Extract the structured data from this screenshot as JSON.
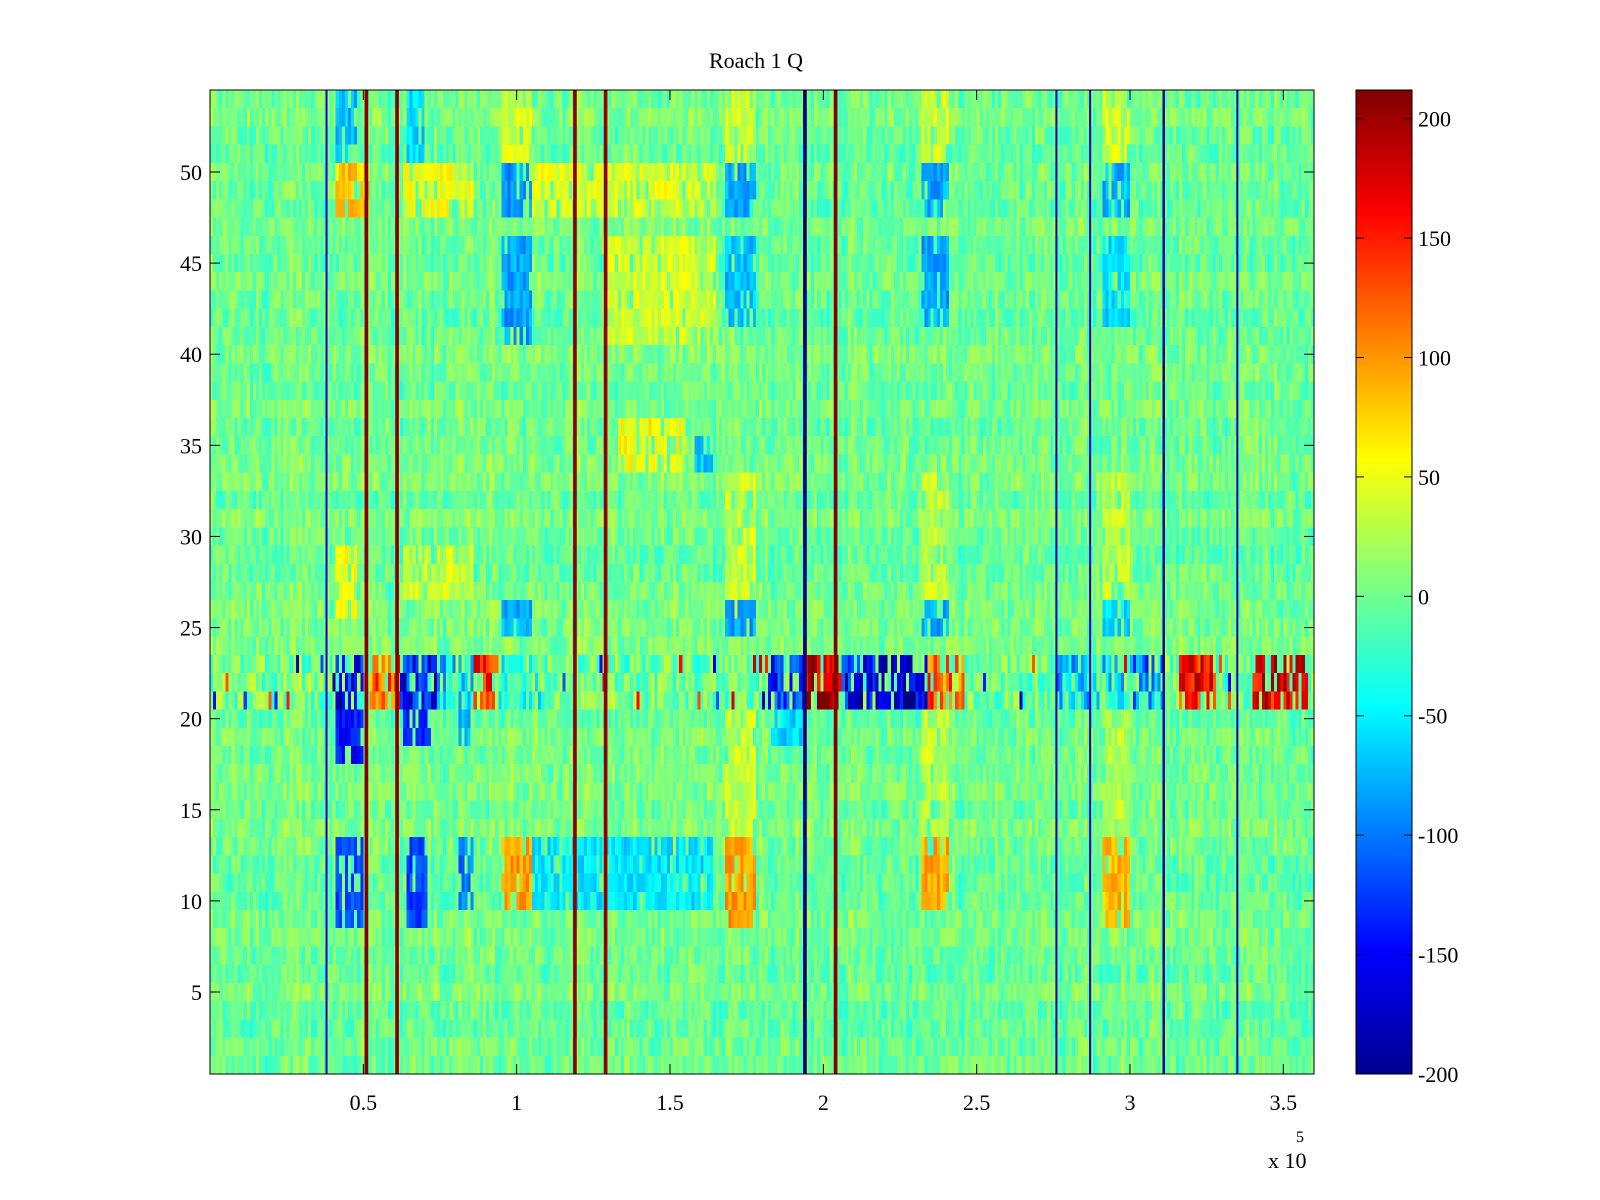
{
  "chart_data": {
    "type": "heatmap",
    "title": "Roach 1 Q",
    "xlabel": "",
    "ylabel": "",
    "x_multiplier_label": "x 10",
    "x_multiplier_exponent": "5",
    "xlim": [
      0,
      3.6
    ],
    "ylim": [
      0.5,
      54.5
    ],
    "x_ticks": [
      0.5,
      1,
      1.5,
      2,
      2.5,
      3,
      3.5
    ],
    "x_tick_labels": [
      "0.5",
      "1",
      "1.5",
      "2",
      "2.5",
      "3",
      "3.5"
    ],
    "y_ticks": [
      5,
      10,
      15,
      20,
      25,
      30,
      35,
      40,
      45,
      50
    ],
    "y_tick_labels": [
      "5",
      "10",
      "15",
      "20",
      "25",
      "30",
      "35",
      "40",
      "45",
      "50"
    ],
    "n_rows": 54,
    "background_level": 0,
    "colorbar": {
      "colormap": "jet",
      "clim": [
        -200,
        212
      ],
      "ticks": [
        -200,
        -150,
        -100,
        -50,
        0,
        50,
        100,
        150,
        200
      ],
      "tick_labels": [
        "-200",
        "-150",
        "-100",
        "-50",
        "0",
        "50",
        "100",
        "150",
        "200"
      ]
    },
    "vertical_stripes": [
      {
        "x": 0.38,
        "value": -170,
        "width": 0.006
      },
      {
        "x": 0.51,
        "value": 210,
        "width": 0.012
      },
      {
        "x": 0.61,
        "value": 210,
        "width": 0.012
      },
      {
        "x": 1.19,
        "value": 205,
        "width": 0.012
      },
      {
        "x": 1.29,
        "value": 205,
        "width": 0.012
      },
      {
        "x": 1.94,
        "value": -200,
        "width": 0.012
      },
      {
        "x": 2.04,
        "value": 210,
        "width": 0.012
      },
      {
        "x": 2.76,
        "value": -180,
        "width": 0.006
      },
      {
        "x": 2.87,
        "value": -180,
        "width": 0.006
      },
      {
        "x": 3.11,
        "value": -190,
        "width": 0.008
      },
      {
        "x": 3.35,
        "value": -180,
        "width": 0.006
      }
    ],
    "blobs": [
      {
        "x0": 0.41,
        "x1": 0.52,
        "y0": 48,
        "y1": 50,
        "value": 80
      },
      {
        "x0": 0.63,
        "x1": 0.86,
        "y0": 48,
        "y1": 50,
        "value": 50
      },
      {
        "x0": 0.41,
        "x1": 0.48,
        "y0": 51,
        "y1": 54,
        "value": -75
      },
      {
        "x0": 0.64,
        "x1": 0.7,
        "y0": 51,
        "y1": 54,
        "value": -60
      },
      {
        "x0": 0.95,
        "x1": 1.05,
        "y0": 51,
        "y1": 54,
        "value": 40
      },
      {
        "x0": 0.95,
        "x1": 1.05,
        "y0": 48,
        "y1": 50,
        "value": -90
      },
      {
        "x0": 1.05,
        "x1": 1.65,
        "y0": 48,
        "y1": 50,
        "value": 45
      },
      {
        "x0": 1.68,
        "x1": 1.78,
        "y0": 48,
        "y1": 50,
        "value": -80
      },
      {
        "x0": 1.68,
        "x1": 1.78,
        "y0": 51,
        "y1": 54,
        "value": 40
      },
      {
        "x0": 2.32,
        "x1": 2.41,
        "y0": 48,
        "y1": 50,
        "value": -80
      },
      {
        "x0": 2.32,
        "x1": 2.41,
        "y0": 51,
        "y1": 54,
        "value": 40
      },
      {
        "x0": 2.91,
        "x1": 3.0,
        "y0": 48,
        "y1": 50,
        "value": -75
      },
      {
        "x0": 2.91,
        "x1": 3.0,
        "y0": 51,
        "y1": 54,
        "value": 40
      },
      {
        "x0": 0.95,
        "x1": 1.05,
        "y0": 41,
        "y1": 46,
        "value": -85
      },
      {
        "x0": 1.28,
        "x1": 1.65,
        "y0": 41,
        "y1": 46,
        "value": 40
      },
      {
        "x0": 1.68,
        "x1": 1.78,
        "y0": 42,
        "y1": 46,
        "value": -70
      },
      {
        "x0": 2.32,
        "x1": 2.41,
        "y0": 42,
        "y1": 46,
        "value": -80
      },
      {
        "x0": 2.91,
        "x1": 3.0,
        "y0": 42,
        "y1": 46,
        "value": -60
      },
      {
        "x0": 1.33,
        "x1": 1.55,
        "y0": 34,
        "y1": 36,
        "value": 55
      },
      {
        "x0": 1.58,
        "x1": 1.64,
        "y0": 34,
        "y1": 35,
        "value": -70
      },
      {
        "x0": 0.41,
        "x1": 0.48,
        "y0": 26,
        "y1": 29,
        "value": 50
      },
      {
        "x0": 0.63,
        "x1": 0.86,
        "y0": 27,
        "y1": 29,
        "value": 40
      },
      {
        "x0": 0.95,
        "x1": 1.05,
        "y0": 25,
        "y1": 26,
        "value": -80
      },
      {
        "x0": 1.68,
        "x1": 1.78,
        "y0": 25,
        "y1": 26,
        "value": -80
      },
      {
        "x0": 2.32,
        "x1": 2.41,
        "y0": 25,
        "y1": 26,
        "value": -80
      },
      {
        "x0": 2.91,
        "x1": 3.0,
        "y0": 25,
        "y1": 26,
        "value": -60
      },
      {
        "x0": 0.41,
        "x1": 0.5,
        "y0": 18,
        "y1": 23,
        "value": -140
      },
      {
        "x0": 0.63,
        "x1": 0.72,
        "y0": 19,
        "y1": 23,
        "value": -130
      },
      {
        "x0": 0.81,
        "x1": 0.85,
        "y0": 19,
        "y1": 22,
        "value": -80
      },
      {
        "x0": 0.41,
        "x1": 0.5,
        "y0": 9,
        "y1": 13,
        "value": -120
      },
      {
        "x0": 0.64,
        "x1": 0.71,
        "y0": 9,
        "y1": 13,
        "value": -120
      },
      {
        "x0": 0.81,
        "x1": 0.86,
        "y0": 10,
        "y1": 13,
        "value": -100
      },
      {
        "x0": 0.95,
        "x1": 1.05,
        "y0": 10,
        "y1": 13,
        "value": 95
      },
      {
        "x0": 1.05,
        "x1": 1.64,
        "y0": 10,
        "y1": 13,
        "value": -55
      },
      {
        "x0": 1.68,
        "x1": 1.78,
        "y0": 9,
        "y1": 13,
        "value": 95
      },
      {
        "x0": 2.32,
        "x1": 2.41,
        "y0": 10,
        "y1": 13,
        "value": 90
      },
      {
        "x0": 2.91,
        "x1": 3.0,
        "y0": 9,
        "y1": 13,
        "value": 85
      },
      {
        "x0": 1.68,
        "x1": 1.78,
        "y0": 27,
        "y1": 33,
        "value": 35
      },
      {
        "x0": 2.32,
        "x1": 2.41,
        "y0": 27,
        "y1": 33,
        "value": 30
      },
      {
        "x0": 2.91,
        "x1": 3.0,
        "y0": 27,
        "y1": 33,
        "value": 30
      },
      {
        "x0": 1.68,
        "x1": 1.78,
        "y0": 14,
        "y1": 20,
        "value": 35
      },
      {
        "x0": 2.32,
        "x1": 2.41,
        "y0": 14,
        "y1": 20,
        "value": 30
      },
      {
        "x0": 2.91,
        "x1": 3.0,
        "y0": 14,
        "y1": 20,
        "value": 30
      },
      {
        "x0": 1.83,
        "x1": 1.94,
        "y0": 19,
        "y1": 21,
        "value": -60
      }
    ],
    "noisy_band": {
      "y0": 20.5,
      "y1": 23.5,
      "segments": [
        {
          "x0": 0.41,
          "x1": 0.5,
          "mean": -150
        },
        {
          "x0": 0.5,
          "x1": 0.62,
          "mean": 120
        },
        {
          "x0": 0.62,
          "x1": 0.74,
          "mean": -140
        },
        {
          "x0": 0.74,
          "x1": 0.86,
          "mean": -60
        },
        {
          "x0": 0.86,
          "x1": 0.94,
          "mean": 150
        },
        {
          "x0": 0.94,
          "x1": 1.08,
          "mean": -30
        },
        {
          "x0": 1.82,
          "x1": 1.94,
          "mean": -130
        },
        {
          "x0": 1.94,
          "x1": 2.06,
          "mean": 190
        },
        {
          "x0": 2.06,
          "x1": 2.22,
          "mean": -150
        },
        {
          "x0": 2.22,
          "x1": 2.34,
          "mean": -170
        },
        {
          "x0": 2.34,
          "x1": 2.46,
          "mean": 120
        },
        {
          "x0": 2.76,
          "x1": 2.86,
          "mean": -80
        },
        {
          "x0": 2.86,
          "x1": 2.98,
          "mean": -60
        },
        {
          "x0": 3.0,
          "x1": 3.11,
          "mean": -100
        },
        {
          "x0": 3.16,
          "x1": 3.28,
          "mean": 150
        },
        {
          "x0": 3.4,
          "x1": 3.58,
          "mean": 170
        }
      ]
    }
  }
}
